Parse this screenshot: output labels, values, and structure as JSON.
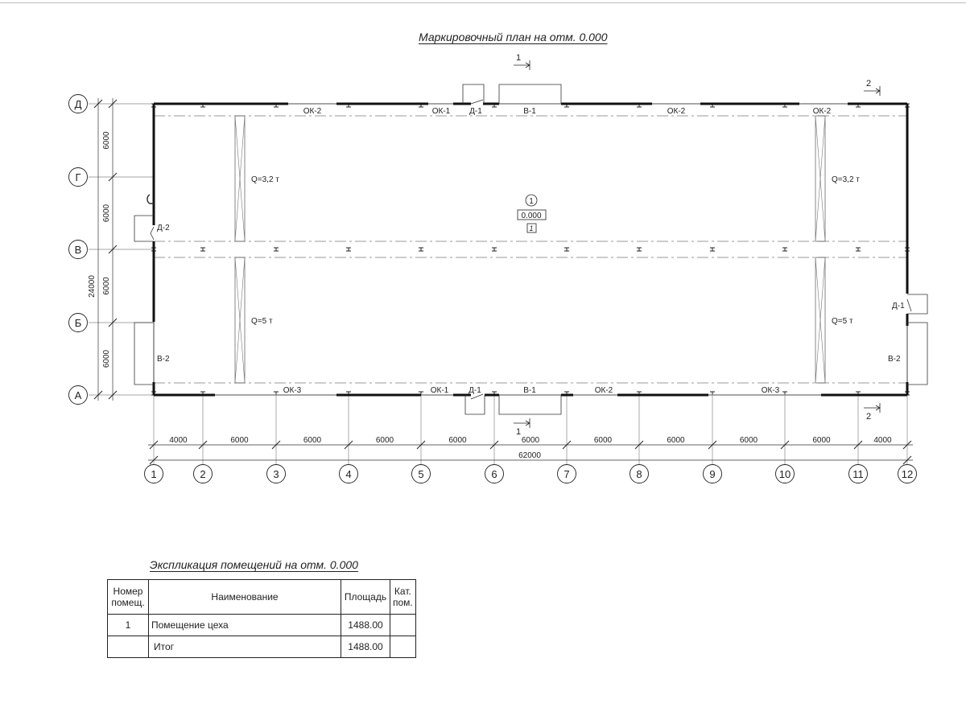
{
  "plan_title": "Маркировочный план на отм. 0.000",
  "axes_rows": [
    "Д",
    "Г",
    "В",
    "Б",
    "А"
  ],
  "axes_cols": [
    "1",
    "2",
    "3",
    "4",
    "5",
    "6",
    "7",
    "8",
    "9",
    "10",
    "11",
    "12"
  ],
  "dims_rows": [
    "6000",
    "6000",
    "6000",
    "6000"
  ],
  "dim_rows_total": "24000",
  "dims_cols": [
    "4000",
    "6000",
    "6000",
    "6000",
    "6000",
    "6000",
    "6000",
    "6000",
    "6000",
    "6000",
    "4000"
  ],
  "dim_cols_total": "62000",
  "sections": {
    "s1": "1",
    "s2": "2"
  },
  "openings": {
    "top": [
      "ОК-2",
      "ОК-1",
      "Д-1",
      "В-1",
      "ОК-2",
      "ОК-2"
    ],
    "bottom": [
      "ОК-3",
      "ОК-1",
      "Д-1",
      "В-1",
      "ОК-2",
      "ОК-3"
    ],
    "left": [
      "Д-2",
      "В-2"
    ],
    "right": [
      "Д-1",
      "В-2"
    ]
  },
  "cranes": [
    "Q=3,2 т",
    "Q=3,2 т",
    "Q=5 т",
    "Q=5 т"
  ],
  "room": {
    "number": "1",
    "level": "0.000",
    "category": "1"
  },
  "explication": {
    "title": "Экспликация помещений на отм. 0.000",
    "headers": [
      "Номер помещ.",
      "Наименование",
      "Площадь",
      "Кат. пом."
    ],
    "rows": [
      {
        "num": "1",
        "name": "Помещение цеха",
        "area": "1488.00",
        "cat": ""
      },
      {
        "num": "",
        "name": "Итог",
        "area": "1488.00",
        "cat": ""
      }
    ]
  }
}
